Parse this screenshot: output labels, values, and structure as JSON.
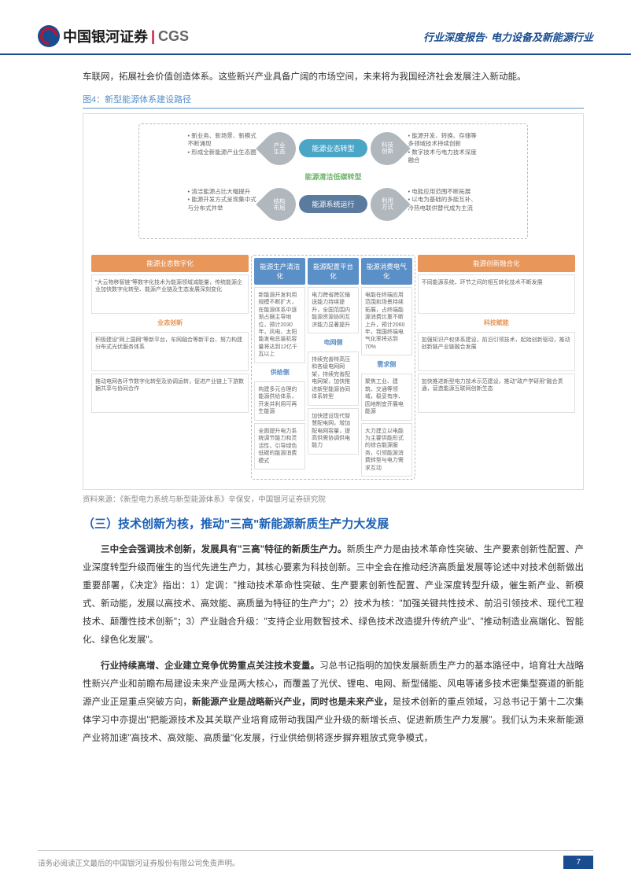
{
  "header": {
    "logo_cn": "中国银河证券",
    "logo_en": "CGS",
    "right_text": "行业深度报告· 电力设备及新能源行业"
  },
  "intro": "车联网，拓展社会价值创造体系。这些新兴产业具备广阔的市场空间，未来将为我国经济社会发展注入新动能。",
  "figure_caption": "图4：新型能源体系建设路径",
  "diagram": {
    "center_text": "能源清洁低碳转型",
    "pill1": "能源业态转型",
    "pill2": "能源系统运行",
    "petals": {
      "top_left": "产业\n生态",
      "top_right": "科技\n创新",
      "bot_left": "结构\n布局",
      "bot_right": "利用\n方式"
    },
    "side_texts": {
      "tl": "• 新业务、新场景、新模式不断涌现\n• 形成全新能源产业生态圈",
      "tr": "• 能源开发、转换、存储等多领域技术持续创新\n• 数字技术与电力技术深度融合",
      "bl": "• 清洁能源占比大幅提升\n• 能源开发方式呈现集中式与分布式并举",
      "br": "• 电能应用范围不断拓展\n• 以电为基础的多能互补、冷热电联供替代成为主流"
    },
    "columns": [
      {
        "header": "能源业态数字化",
        "sub": "业态创新",
        "color": "orange",
        "cells": [
          "\"大云物移智链\"等数字化技术为能源领域减能量，传统能源企业加快数字化转型、能源产业链及生态发展深刻变化",
          "积极建设\"网上国网\"等新平台，车网融合等新平台、努力构建分布式光伏服务体系",
          "推动电网各环节数字化转型及协调运转，促进产业链上下游数据共享与协同合作"
        ]
      },
      {
        "header": "能源生产清洁化",
        "sub": "供给侧",
        "color": "blue",
        "cells": [
          "新能源开发利用规模不断扩大，在能源体系中逐渐占据主导地位，预计2030年，风电、太阳能发电总装机容量将达到12亿千瓦以上",
          "构建多元合理的能源供给体系，开发并利用可再生能源",
          "全面提升电力系统调节能力和灵活性，引导绿色低碳的能源消费模式"
        ]
      },
      {
        "header": "能源配置平台化",
        "sub": "电网侧",
        "color": "blue",
        "cells": [
          "电力跨省跨区输送能力持续提升，全国范围内能源资源协同互济能力显著提升",
          "持续完善特高压和各级电网网架，持续完善配电网架，加快推进新型能源协同体系转型",
          "加快建设现代智慧配电网，增加配电网容量，提高供需协调供电能力"
        ]
      },
      {
        "header": "能源消费电气化",
        "sub": "需求侧",
        "color": "blue",
        "cells": [
          "电能在终端应用范围和场景持续拓展，占终端能源消费比重不断上升，预计2060年，我国终端电气化率将达到70%",
          "聚焦工业、建筑、交通等领域，稳妥有序、因地制宜开展电能源",
          "大力建立以电能为主要供能形式的综合能源服务，引领能源消费转型与电力需求互动"
        ]
      },
      {
        "header": "能源创新融合化",
        "sub": "科技赋能",
        "color": "orange",
        "cells": [
          "不同能源系统、环节之间的相互转化技术不断发展",
          "加强知识产权体系建设，前沿引领技术，起始创新驱动，推动创新链产业链融合发展",
          "加快推进新型电力技术示范建设，推动\"政产学研用\"融合贯通，营造能源互联网创新生态"
        ]
      }
    ]
  },
  "source": "资料来源：《新型电力系统与新型能源体系》辛保安，中国银河证券研究院",
  "section_heading": "（三）技术创新为核，推动\"三高\"新能源新质生产力大发展",
  "para1_bold": "三中全会强调技术创新，发展具有\"三高\"特征的新质生产力。",
  "para1_rest": "新质生产力是由技术革命性突破、生产要素创新性配置、产业深度转型升级而催生的当代先进生产力，其核心要素为科技创新。三中全会在推动经济高质量发展等论述中对技术创新做出重要部署，《决定》指出：1）定调：\"推动技术革命性突破、生产要素创新性配置、产业深度转型升级，催生新产业、新模式、新动能，发展以高技术、高效能、高质量为特征的生产力\"；2）技术为核：\"加强关键共性技术、前沿引领技术、现代工程技术、颠覆性技术创新\"；3）产业融合升级：\"支持企业用数智技术、绿色技术改造提升传统产业\"、\"推动制造业高端化、智能化、绿色化发展\"。",
  "para2_bold": "行业持续高增、企业建立竞争优势重点关注技术变量。",
  "para2_mid": "习总书记指明的加快发展新质生产力的基本路径中，培育壮大战略性新兴产业和前瞻布局建设未来产业是两大核心，而覆盖了光伏、锂电、电网、新型储能、风电等诸多技术密集型赛道的新能源产业正是重点突破方向，",
  "para2_bold2": "新能源产业是战略新兴产业，同时也是未来产业，",
  "para2_end": "是技术创新的重点领域，习总书记于第十二次集体学习中亦提出\"把能源技术及其关联产业培育成带动我国产业升级的新增长点、促进新质生产力发展\"。我们认为未来新能源产业将加速\"高技术、高效能、高质量\"化发展，行业供给侧将逐步摒弃粗放式竞争模式，",
  "footer": {
    "disclaimer": "请务必阅读正文最后的中国银河证券股份有限公司免责声明。",
    "page": "7"
  },
  "colors": {
    "brand_blue": "#1a4d8f",
    "heading_blue": "#1a5fb4",
    "orange": "#e8965a",
    "col_blue": "#5a8fc7",
    "green": "#6bb56b"
  }
}
